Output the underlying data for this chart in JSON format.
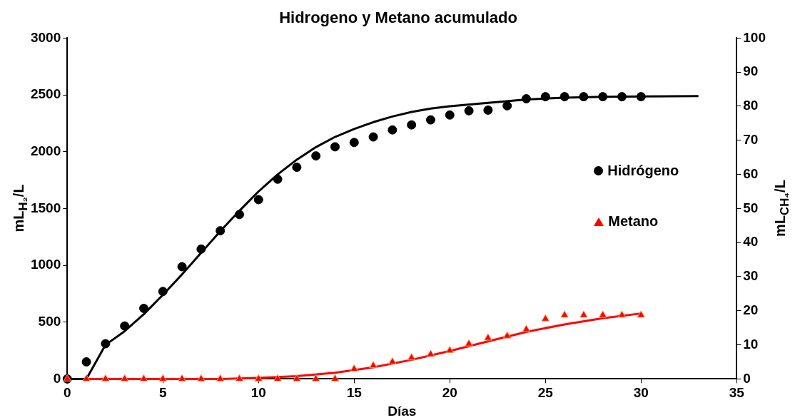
{
  "chart_data": {
    "type": "scatter",
    "title": "Hidrogeno y Metano acumulado",
    "xlabel": "Días",
    "ylabel": "mL$_{H₂}$/L",
    "y2label": "mL$_{CH₄}$/L",
    "xlim": [
      0,
      35
    ],
    "xticks": [
      0,
      5,
      10,
      15,
      20,
      25,
      30,
      35
    ],
    "ylim": [
      0,
      3000
    ],
    "yticks": [
      0,
      500,
      1000,
      1500,
      2000,
      2500,
      3000
    ],
    "y2lim": [
      0,
      100
    ],
    "y2ticks": [
      0,
      10,
      20,
      30,
      40,
      50,
      60,
      70,
      80,
      90,
      100
    ],
    "grid": false,
    "legend": "right",
    "series": [
      {
        "name": "Hidrógeno",
        "marker": "circle",
        "color": "#000000",
        "x": [
          0,
          1,
          2,
          3,
          4,
          5,
          6,
          7,
          8,
          9,
          10,
          11,
          12,
          13,
          14,
          15,
          16,
          17,
          18,
          19,
          20,
          21,
          22,
          23,
          24,
          25,
          26,
          27,
          28,
          29,
          30
        ],
        "values": [
          0,
          150,
          310,
          466,
          621,
          770,
          988,
          1143,
          1304,
          1447,
          1578,
          1758,
          1863,
          1963,
          2043,
          2081,
          2130,
          2192,
          2236,
          2280,
          2323,
          2360,
          2366,
          2404,
          2466,
          2484,
          2484,
          2484,
          2484,
          2484,
          2484
        ]
      },
      {
        "name": "Metano",
        "marker": "triangle",
        "axis": "y2",
        "color": "#ff0000",
        "x": [
          0,
          1,
          2,
          3,
          4,
          5,
          6,
          7,
          8,
          9,
          10,
          11,
          12,
          13,
          14,
          15,
          16,
          17,
          18,
          19,
          20,
          21,
          22,
          23,
          24,
          25,
          26,
          27,
          28,
          29,
          30
        ],
        "values": [
          0,
          0,
          0,
          0,
          0,
          0,
          0,
          0,
          0,
          0,
          0,
          0,
          0,
          0,
          0,
          2.9,
          3.9,
          5,
          6.2,
          7.2,
          8.3,
          10.3,
          12,
          12.6,
          14.5,
          17.6,
          18.7,
          18.7,
          18.7,
          18.7,
          18.7
        ]
      },
      {
        "type": "line",
        "marker": "none",
        "line_style": "solid",
        "color": "#000000",
        "x": [
          0,
          1,
          2,
          3,
          4,
          5,
          6,
          7,
          8,
          9,
          10,
          11,
          12,
          13,
          14,
          15,
          16,
          17,
          18,
          19,
          20,
          22,
          24,
          26,
          28,
          30,
          33
        ],
        "values": [
          0,
          0,
          300,
          420,
          570,
          740,
          920,
          1110,
          1300,
          1480,
          1650,
          1800,
          1930,
          2040,
          2130,
          2200,
          2260,
          2310,
          2350,
          2380,
          2400,
          2430,
          2460,
          2475,
          2483,
          2487,
          2490
        ]
      },
      {
        "type": "line",
        "marker": "none",
        "line_style": "solid",
        "axis": "y2",
        "color": "#ff0000",
        "x": [
          0,
          8,
          10,
          12,
          14,
          16,
          18,
          20,
          22,
          24,
          26,
          28,
          30
        ],
        "values": [
          0,
          0,
          0.3,
          0.8,
          1.8,
          3.4,
          5.6,
          8.2,
          11,
          13.8,
          16,
          17.8,
          19.2
        ]
      }
    ]
  }
}
